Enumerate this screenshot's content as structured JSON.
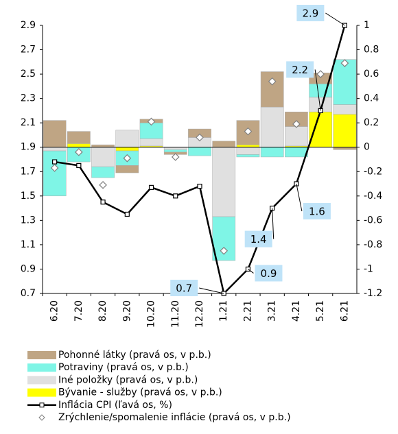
{
  "chart_data": {
    "type": "bar",
    "categories": [
      "6.20",
      "7.20",
      "8.20",
      "9.20",
      "10.20",
      "11.20",
      "12.20",
      "1.21",
      "2.21",
      "3.21",
      "4.21",
      "5.21",
      "6.21"
    ],
    "ylim": [
      0.7,
      2.9
    ],
    "yticks": [
      0.7,
      0.9,
      1.1,
      1.3,
      1.5,
      1.7,
      1.9,
      2.1,
      2.3,
      2.5,
      2.7,
      2.9
    ],
    "y2lim": [
      -1.2,
      1
    ],
    "y2ticks": [
      -1.2,
      -1,
      -0.8,
      -0.6,
      -0.4,
      -0.2,
      0,
      0.2,
      0.4,
      0.6,
      0.8,
      1
    ],
    "series": [
      {
        "name": "Pohonné látky (pravá os,  v p.b.)",
        "type": "bar",
        "axis": "y2",
        "color": "#bfa584",
        "values": [
          0.22,
          0.1,
          0.02,
          -0.06,
          0.03,
          -0.02,
          0.07,
          0.05,
          0.2,
          0.29,
          0.12,
          0.09,
          -0.02
        ]
      },
      {
        "name": "Potraviny (pravá os,  v p.b.)",
        "type": "bar",
        "axis": "y2",
        "color": "#7ff5e6",
        "values": [
          -0.37,
          -0.12,
          -0.09,
          -0.12,
          0.13,
          -0.02,
          -0.07,
          -0.36,
          -0.02,
          -0.08,
          -0.08,
          0.11,
          0.37
        ]
      },
      {
        "name": "Iné položky (pravá os,  v p.b.)",
        "type": "bar",
        "axis": "y2",
        "color": "#e0e0e0",
        "values": [
          -0.03,
          0,
          -0.16,
          0.14,
          0.06,
          -0.02,
          0.08,
          -0.57,
          -0.06,
          0.33,
          0.16,
          0.12,
          0.08
        ]
      },
      {
        "name": "Bývanie - služby (pravá os,  v p.b.)",
        "type": "bar",
        "axis": "y2",
        "color": "#ffff00",
        "values": [
          0,
          0.03,
          0,
          -0.03,
          0.01,
          0,
          0,
          0,
          0.02,
          0,
          0.01,
          0.29,
          0.27
        ]
      },
      {
        "name": "Inflácia CPI (ľavá os,  %)",
        "type": "line",
        "axis": "y",
        "color": "#000000",
        "values": [
          1.78,
          1.75,
          1.45,
          1.35,
          1.57,
          1.5,
          1.58,
          0.7,
          0.9,
          1.4,
          1.6,
          2.2,
          2.9
        ]
      },
      {
        "name": "Zrýchlenie/spomalenie inflácie (pravá os,  v p.b.)",
        "type": "scatter",
        "axis": "y2",
        "color": "#808080",
        "values": [
          -0.17,
          -0.04,
          -0.31,
          -0.09,
          0.21,
          -0.08,
          0.08,
          -0.85,
          0.13,
          0.54,
          0.19,
          0.6,
          0.69
        ]
      }
    ]
  }
}
